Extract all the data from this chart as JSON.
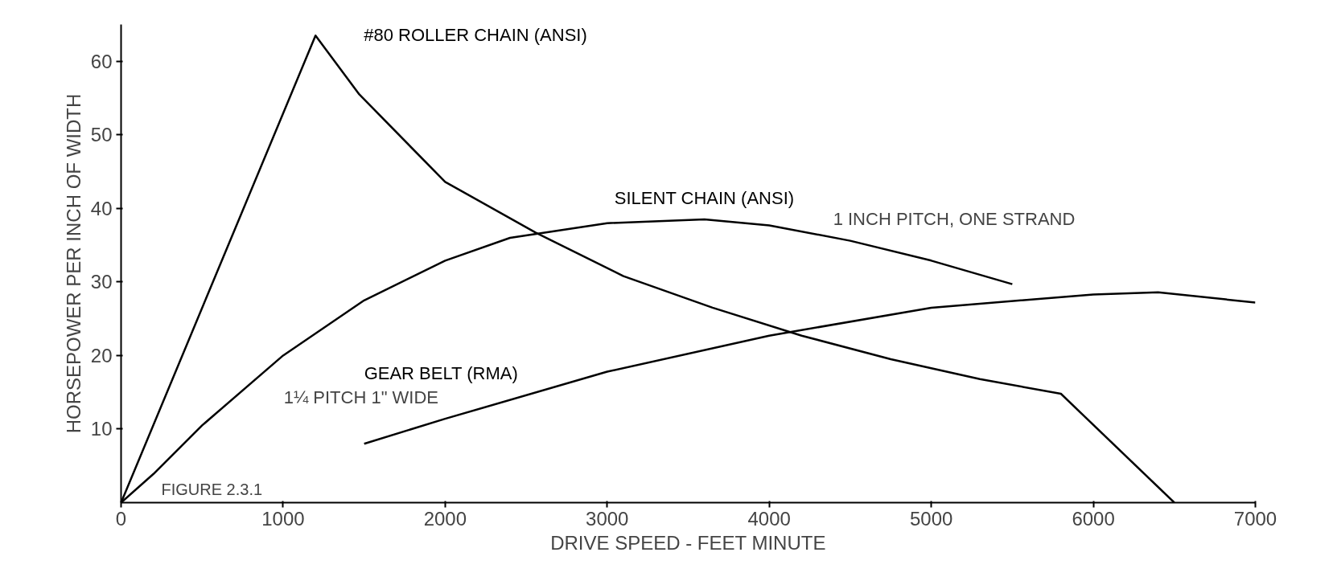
{
  "chart_data": {
    "type": "line",
    "xlabel": "DRIVE SPEED - FEET MINUTE",
    "ylabel": "HORSEPOWER PER INCH OF WIDTH",
    "xlim": [
      0,
      7000
    ],
    "ylim": [
      0,
      65
    ],
    "xticks": [
      0,
      1000,
      2000,
      3000,
      4000,
      5000,
      6000,
      7000
    ],
    "yticks": [
      10,
      20,
      30,
      40,
      50,
      60
    ],
    "grid": false,
    "marker": "none",
    "line_style": "solid",
    "series": [
      {
        "name": "#80 ROLLER CHAIN (ANSI)",
        "color": "#000000",
        "x": [
          0,
          1200,
          1470,
          2000,
          2560,
          3100,
          3650,
          4200,
          4750,
          5300,
          5800,
          6500
        ],
        "values": [
          0,
          63.5,
          55.5,
          43.6,
          36.7,
          30.8,
          26.5,
          22.7,
          19.5,
          16.8,
          14.8,
          0
        ]
      },
      {
        "name": "SILENT CHAIN (ANSI)",
        "color": "#000000",
        "x": [
          0,
          200,
          500,
          1000,
          1500,
          2000,
          2400,
          3000,
          3600,
          4000,
          4500,
          5000,
          5500
        ],
        "values": [
          0,
          3.9,
          10.5,
          20,
          27.5,
          32.9,
          36,
          38,
          38.5,
          37.7,
          35.6,
          32.9,
          29.7
        ]
      },
      {
        "name": "GEAR BELT (RMA)",
        "color": "#000000",
        "x": [
          1500,
          2000,
          3000,
          4000,
          5000,
          6000,
          6400,
          7000
        ],
        "values": [
          8,
          11.4,
          17.8,
          22.7,
          26.5,
          28.3,
          28.6,
          27.2
        ]
      }
    ],
    "annotations": [
      "1 INCH PITCH, ONE STRAND",
      "1¼ PITCH 1\" WIDE",
      "FIGURE 2.3.1"
    ]
  }
}
